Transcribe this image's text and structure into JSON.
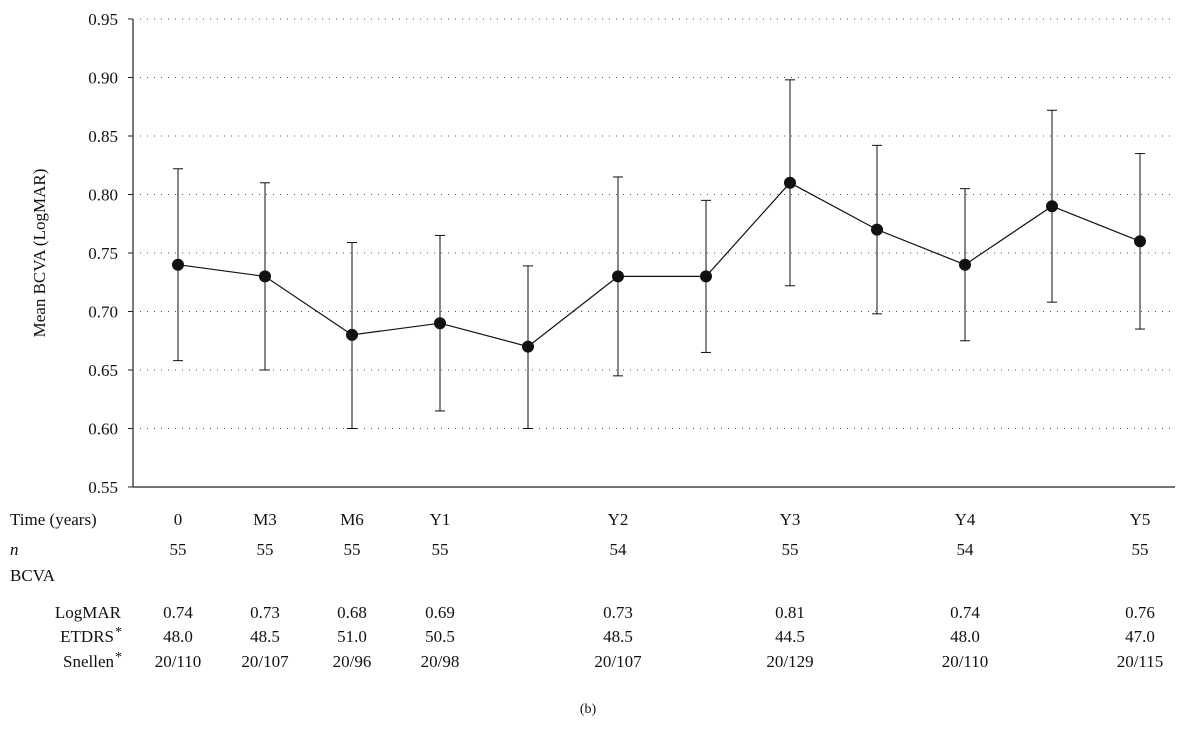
{
  "chart_data": {
    "type": "line",
    "ylabel": "Mean BCVA (LogMAR)",
    "ylim": [
      0.55,
      0.95
    ],
    "yticks": [
      "0.55",
      "0.60",
      "0.65",
      "0.70",
      "0.75",
      "0.80",
      "0.85",
      "0.90",
      "0.95"
    ],
    "grid": "horizontal-dotted",
    "series": [
      {
        "values": [
          0.74,
          0.73,
          0.68,
          0.69,
          0.67,
          0.73,
          0.73,
          0.81,
          0.77,
          0.74,
          0.79,
          0.76
        ],
        "err_low": [
          0.658,
          0.65,
          0.6,
          0.615,
          0.6,
          0.645,
          0.665,
          0.722,
          0.698,
          0.675,
          0.708,
          0.685
        ],
        "err_high": [
          0.822,
          0.81,
          0.759,
          0.765,
          0.739,
          0.815,
          0.795,
          0.898,
          0.842,
          0.805,
          0.872,
          0.835
        ]
      }
    ],
    "caption": "(b)",
    "table": {
      "row_labels": {
        "time": "Time (years)",
        "n": "n",
        "bcva": "BCVA",
        "logmar": "LogMAR",
        "etdrs": "ETDRS",
        "snellen": "Snellen",
        "star": "*"
      },
      "columns": [
        {
          "time": "0",
          "n": "55",
          "logmar": "0.74",
          "etdrs": "48.0",
          "snellen": "20/110"
        },
        {
          "time": "M3",
          "n": "55",
          "logmar": "0.73",
          "etdrs": "48.5",
          "snellen": "20/107"
        },
        {
          "time": "M6",
          "n": "55",
          "logmar": "0.68",
          "etdrs": "51.0",
          "snellen": "20/96"
        },
        {
          "time": "Y1",
          "n": "55",
          "logmar": "0.69",
          "etdrs": "50.5",
          "snellen": "20/98"
        },
        {
          "time": "Y2",
          "n": "54",
          "logmar": "0.73",
          "etdrs": "48.5",
          "snellen": "20/107"
        },
        {
          "time": "Y3",
          "n": "55",
          "logmar": "0.81",
          "etdrs": "44.5",
          "snellen": "20/129"
        },
        {
          "time": "Y4",
          "n": "54",
          "logmar": "0.74",
          "etdrs": "48.0",
          "snellen": "20/110"
        },
        {
          "time": "Y5",
          "n": "55",
          "logmar": "0.76",
          "etdrs": "47.0",
          "snellen": "20/115"
        }
      ]
    }
  }
}
